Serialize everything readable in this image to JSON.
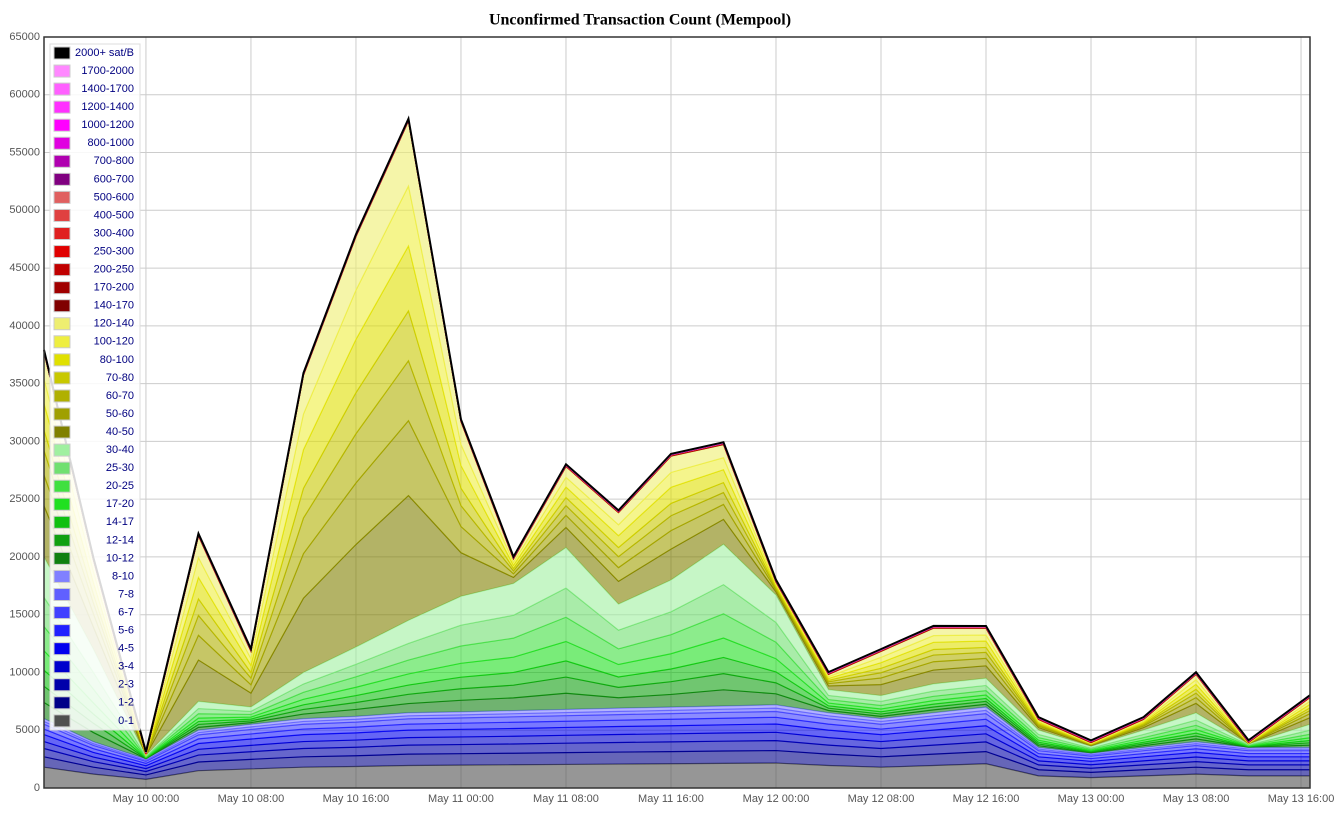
{
  "chart_data": {
    "type": "stacked_area",
    "title": "Unconfirmed Transaction Count (Mempool)",
    "x": [
      "May 9 16:14",
      "May 9 20:00",
      "May 10 00:00",
      "May 10 04:00",
      "May 10 08:00",
      "May 10 12:00",
      "May 10 16:00",
      "May 10 20:00",
      "May 11 00:00",
      "May 11 04:00",
      "May 11 08:00",
      "May 11 12:00",
      "May 11 16:00",
      "May 11 20:00",
      "May 12 00:00",
      "May 12 04:00",
      "May 12 08:00",
      "May 12 12:00",
      "May 12 16:00",
      "May 12 20:00",
      "May 13 00:00",
      "May 13 04:00",
      "May 13 08:00",
      "May 13 12:00",
      "May 13 16:41"
    ],
    "xlim": [
      "May 9 16:14",
      "May 13 16:41"
    ],
    "xticks": [
      "May 10 00:00",
      "May 10 08:00",
      "May 10 16:00",
      "May 11 00:00",
      "May 11 08:00",
      "May 11 16:00",
      "May 12 00:00",
      "May 12 08:00",
      "May 12 16:00",
      "May 13 00:00",
      "May 13 08:00",
      "May 13 16:00"
    ],
    "ylim": [
      0,
      65000
    ],
    "yticks": [
      0,
      5000,
      10000,
      15000,
      20000,
      25000,
      30000,
      35000,
      40000,
      45000,
      50000,
      55000,
      60000,
      65000
    ],
    "grid": true,
    "legend": "upper-left",
    "series": [
      {
        "name": "2000+ sat/B",
        "color": "#000000",
        "values": [
          40,
          40,
          40,
          40,
          40,
          40,
          40,
          40,
          40,
          40,
          40,
          40,
          40,
          40,
          40,
          40,
          40,
          40,
          40,
          40,
          40,
          40,
          40,
          40,
          40
        ]
      },
      {
        "name": "1700-2000",
        "color": "#ff88ff",
        "values": [
          5,
          5,
          5,
          5,
          5,
          5,
          5,
          5,
          5,
          5,
          5,
          5,
          5,
          5,
          5,
          5,
          5,
          5,
          5,
          5,
          5,
          5,
          5,
          5,
          5
        ]
      },
      {
        "name": "1400-1700",
        "color": "#ff60ff",
        "values": [
          5,
          5,
          5,
          5,
          5,
          5,
          5,
          5,
          5,
          5,
          5,
          5,
          5,
          5,
          5,
          5,
          5,
          5,
          5,
          5,
          5,
          5,
          5,
          5,
          5
        ]
      },
      {
        "name": "1200-1400",
        "color": "#ff30ff",
        "values": [
          5,
          5,
          5,
          5,
          5,
          5,
          5,
          5,
          5,
          5,
          5,
          5,
          5,
          5,
          5,
          5,
          5,
          5,
          5,
          5,
          5,
          5,
          5,
          5,
          5
        ]
      },
      {
        "name": "1000-1200",
        "color": "#ff00ff",
        "values": [
          5,
          5,
          5,
          5,
          5,
          5,
          5,
          5,
          5,
          5,
          5,
          5,
          5,
          5,
          5,
          5,
          5,
          5,
          5,
          5,
          5,
          5,
          5,
          5,
          5
        ]
      },
      {
        "name": "800-1000",
        "color": "#e000e0",
        "values": [
          10,
          10,
          10,
          10,
          10,
          10,
          10,
          10,
          10,
          10,
          10,
          10,
          10,
          10,
          10,
          10,
          10,
          10,
          10,
          10,
          10,
          10,
          10,
          10,
          10
        ]
      },
      {
        "name": "700-800",
        "color": "#b000b0",
        "values": [
          10,
          10,
          10,
          10,
          10,
          10,
          10,
          10,
          10,
          10,
          10,
          10,
          10,
          10,
          10,
          10,
          10,
          10,
          10,
          10,
          10,
          10,
          10,
          10,
          10
        ]
      },
      {
        "name": "600-700",
        "color": "#800080",
        "values": [
          15,
          15,
          15,
          15,
          15,
          15,
          15,
          15,
          15,
          15,
          15,
          15,
          15,
          15,
          15,
          15,
          15,
          15,
          15,
          15,
          15,
          15,
          15,
          15,
          15
        ]
      },
      {
        "name": "500-600",
        "color": "#e06060",
        "values": [
          10,
          10,
          10,
          10,
          10,
          10,
          10,
          10,
          10,
          10,
          10,
          10,
          10,
          10,
          10,
          10,
          10,
          10,
          10,
          10,
          10,
          10,
          10,
          10,
          10
        ]
      },
      {
        "name": "400-500",
        "color": "#e04040",
        "values": [
          10,
          10,
          10,
          10,
          10,
          10,
          10,
          10,
          10,
          10,
          10,
          10,
          10,
          10,
          10,
          10,
          10,
          10,
          10,
          10,
          10,
          10,
          10,
          10,
          10
        ]
      },
      {
        "name": "300-400",
        "color": "#e02020",
        "values": [
          20,
          20,
          20,
          20,
          20,
          20,
          20,
          20,
          20,
          20,
          20,
          20,
          20,
          20,
          20,
          20,
          20,
          20,
          20,
          20,
          20,
          20,
          20,
          20,
          20
        ]
      },
      {
        "name": "250-300",
        "color": "#e00000",
        "values": [
          15,
          15,
          15,
          15,
          15,
          15,
          15,
          15,
          15,
          15,
          15,
          15,
          15,
          15,
          15,
          15,
          15,
          15,
          15,
          15,
          15,
          15,
          15,
          15,
          15
        ]
      },
      {
        "name": "200-250",
        "color": "#c00000",
        "values": [
          20,
          20,
          20,
          20,
          20,
          20,
          20,
          20,
          20,
          20,
          20,
          20,
          20,
          20,
          20,
          20,
          20,
          20,
          20,
          20,
          20,
          20,
          20,
          20,
          20
        ]
      },
      {
        "name": "170-200",
        "color": "#a00000",
        "values": [
          20,
          20,
          20,
          20,
          20,
          20,
          20,
          20,
          20,
          20,
          20,
          20,
          20,
          20,
          20,
          20,
          20,
          20,
          20,
          20,
          20,
          20,
          20,
          20,
          20
        ]
      },
      {
        "name": "140-170",
        "color": "#800000",
        "values": [
          30,
          30,
          30,
          30,
          30,
          30,
          30,
          30,
          30,
          30,
          30,
          30,
          30,
          30,
          30,
          30,
          30,
          30,
          30,
          30,
          30,
          30,
          30,
          30,
          30
        ]
      },
      {
        "name": "120-140",
        "color": "#eeee70",
        "values": [
          2301,
          1001,
          13,
          1859,
          624,
          3341,
          4615,
          5616,
          1963,
          273,
          910,
          1027,
          1391,
          1118,
          143,
          169,
          494,
          624,
          559,
          117,
          39,
          117,
          429,
          13,
          299
        ]
      },
      {
        "name": "100-120",
        "color": "#eeee40",
        "values": [
          2124,
          924,
          12,
          1716,
          576,
          3084,
          4260,
          5184,
          1812,
          252,
          840,
          948,
          1284,
          1032,
          132,
          156,
          456,
          576,
          516,
          108,
          36,
          108,
          396,
          12,
          276
        ]
      },
      {
        "name": "80-100",
        "color": "#e0e000",
        "values": [
          2301,
          1001,
          13,
          1859,
          624,
          3341,
          4615,
          5616,
          1963,
          273,
          910,
          1027,
          1391,
          1118,
          143,
          169,
          494,
          624,
          559,
          117,
          39,
          117,
          429,
          13,
          299
        ]
      },
      {
        "name": "70-80",
        "color": "#c8c800",
        "values": [
          1770,
          770,
          10,
          1430,
          480,
          2570,
          3550,
          4320,
          1510,
          210,
          700,
          790,
          1070,
          860,
          110,
          130,
          380,
          480,
          430,
          90,
          30,
          90,
          330,
          10,
          230
        ]
      },
      {
        "name": "60-70",
        "color": "#b0b000",
        "values": [
          2124,
          924,
          12,
          1716,
          576,
          3084,
          4260,
          5184,
          1812,
          252,
          840,
          948,
          1284,
          1032,
          132,
          156,
          456,
          576,
          516,
          108,
          36,
          108,
          396,
          12,
          276
        ]
      },
      {
        "name": "50-60",
        "color": "#a0a000",
        "values": [
          2655,
          1155,
          15,
          2145,
          720,
          3855,
          5325,
          6480,
          2265,
          315,
          1050,
          1185,
          1605,
          1290,
          165,
          195,
          570,
          720,
          645,
          135,
          45,
          135,
          495,
          15,
          345
        ]
      },
      {
        "name": "40-50",
        "color": "#808000",
        "values": [
          4425,
          1925,
          25,
          3575,
          1200,
          6425,
          8875,
          10800,
          3775,
          525,
          1750,
          1975,
          2675,
          2150,
          275,
          325,
          950,
          1200,
          1075,
          225,
          75,
          225,
          825,
          25,
          575
        ]
      },
      {
        "name": "30-40",
        "color": "#a0f0a0",
        "values": [
          3500,
          2000,
          75,
          625,
          375,
          1000,
          1500,
          2000,
          2500,
          2750,
          3500,
          2250,
          2750,
          3500,
          2375,
          500,
          500,
          625,
          625,
          375,
          150,
          375,
          625,
          75,
          500
        ]
      },
      {
        "name": "25-30",
        "color": "#70e070",
        "values": [
          2520,
          1440,
          54,
          450,
          270,
          720,
          1080,
          1440,
          1800,
          1980,
          2520,
          1620,
          1980,
          2520,
          1710,
          360,
          360,
          450,
          450,
          270,
          108,
          270,
          450,
          54,
          360
        ]
      },
      {
        "name": "20-25",
        "color": "#40e040",
        "values": [
          2100,
          1200,
          45,
          375,
          225,
          600,
          900,
          1200,
          1500,
          1650,
          2100,
          1350,
          1650,
          2100,
          1425,
          300,
          300,
          375,
          375,
          225,
          90,
          225,
          375,
          45,
          300
        ]
      },
      {
        "name": "17-20",
        "color": "#20e020",
        "values": [
          1680,
          960,
          36,
          300,
          180,
          480,
          720,
          960,
          1200,
          1320,
          1680,
          1080,
          1320,
          1680,
          1140,
          240,
          240,
          300,
          300,
          180,
          72,
          180,
          300,
          36,
          240
        ]
      },
      {
        "name": "14-17",
        "color": "#10c010",
        "values": [
          1400,
          800,
          30,
          250,
          150,
          400,
          600,
          800,
          1000,
          1100,
          1400,
          900,
          1100,
          1400,
          950,
          200,
          200,
          250,
          250,
          150,
          60,
          150,
          250,
          30,
          200
        ]
      },
      {
        "name": "12-14",
        "color": "#10a010",
        "values": [
          1400,
          800,
          30,
          250,
          150,
          400,
          600,
          800,
          1000,
          1100,
          1400,
          900,
          1100,
          1400,
          950,
          200,
          200,
          250,
          250,
          150,
          60,
          150,
          250,
          30,
          200
        ]
      },
      {
        "name": "10-12",
        "color": "#108010",
        "values": [
          1400,
          800,
          30,
          250,
          150,
          400,
          600,
          800,
          1000,
          1100,
          1400,
          900,
          1100,
          1400,
          950,
          200,
          200,
          250,
          250,
          150,
          60,
          150,
          250,
          30,
          200
        ]
      },
      {
        "name": "8-10",
        "color": "#8080ff",
        "values": [
          240,
          160,
          100,
          200,
          220,
          240,
          250,
          260,
          260,
          270,
          270,
          280,
          280,
          280,
          290,
          260,
          240,
          260,
          280,
          140,
          120,
          140,
          160,
          140,
          140
        ]
      },
      {
        "name": "7-8",
        "color": "#6060ff",
        "values": [
          240,
          160,
          100,
          200,
          220,
          240,
          250,
          260,
          260,
          270,
          270,
          280,
          280,
          280,
          290,
          260,
          240,
          260,
          280,
          140,
          120,
          140,
          160,
          140,
          140
        ]
      },
      {
        "name": "6-7",
        "color": "#4040ff",
        "values": [
          420,
          280,
          180,
          350,
          390,
          420,
          430,
          460,
          460,
          470,
          480,
          480,
          490,
          500,
          500,
          460,
          420,
          460,
          490,
          250,
          210,
          250,
          280,
          250,
          250
        ]
      },
      {
        "name": "5-6",
        "color": "#2020ff",
        "values": [
          480,
          320,
          200,
          400,
          440,
          480,
          500,
          520,
          530,
          540,
          540,
          550,
          560,
          570,
          580,
          520,
          480,
          520,
          560,
          280,
          240,
          280,
          320,
          280,
          280
        ]
      },
      {
        "name": "4-5",
        "color": "#0000ee",
        "values": [
          600,
          400,
          250,
          500,
          550,
          600,
          620,
          650,
          660,
          670,
          680,
          690,
          700,
          710,
          720,
          650,
          600,
          650,
          700,
          350,
          300,
          350,
          400,
          350,
          350
        ]
      },
      {
        "name": "3-4",
        "color": "#0000cc",
        "values": [
          600,
          400,
          250,
          500,
          550,
          600,
          620,
          650,
          660,
          670,
          680,
          690,
          700,
          710,
          720,
          650,
          600,
          650,
          700,
          350,
          300,
          350,
          400,
          350,
          350
        ]
      },
      {
        "name": "2-3",
        "color": "#0000aa",
        "values": [
          720,
          480,
          300,
          600,
          660,
          720,
          740,
          780,
          790,
          800,
          820,
          830,
          840,
          850,
          860,
          780,
          720,
          780,
          840,
          420,
          360,
          420,
          480,
          420,
          420
        ]
      },
      {
        "name": "1-2",
        "color": "#000088",
        "values": [
          900,
          600,
          380,
          750,
          830,
          900,
          930,
          980,
          990,
          1000,
          1020,
          1040,
          1050,
          1070,
          1080,
          980,
          900,
          980,
          1050,
          530,
          450,
          530,
          600,
          530,
          530
        ]
      },
      {
        "name": "0-1",
        "color": "#505050",
        "values": [
          1800,
          1200,
          750,
          1500,
          1650,
          1800,
          1860,
          1950,
          1980,
          2010,
          2040,
          2070,
          2100,
          2130,
          2160,
          1950,
          1800,
          1950,
          2100,
          1050,
          900,
          1050,
          1200,
          1050,
          1050
        ]
      }
    ]
  }
}
